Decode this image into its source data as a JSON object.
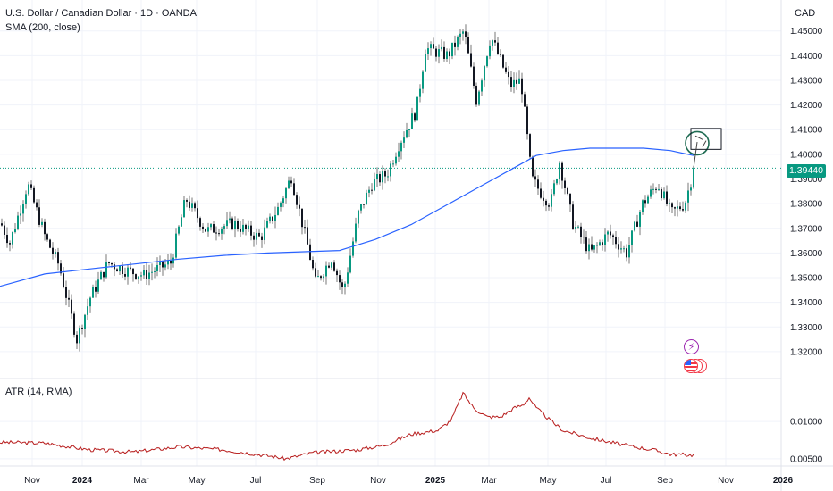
{
  "header": {
    "title": "U.S. Dollar / Canadian Dollar · 1D · OANDA",
    "sma_label": "SMA (200, close)",
    "atr_label": "ATR (14, RMA)",
    "currency": "CAD",
    "last_price": "1.39440"
  },
  "colors": {
    "up": "#089981",
    "down": "#131722",
    "wick": "#555555",
    "sma": "#2962ff",
    "atr": "#b71c1c",
    "grid": "#f0f3fa",
    "annotation_circle": "#1e6b52",
    "annotation_box": "#131722",
    "badge": "#089981"
  },
  "icons": [
    "lightning-icon",
    "us-flag-icon"
  ],
  "chart_data": [
    {
      "type": "candlestick",
      "series_name": "U.S. Dollar / Canadian Dollar",
      "ylim": [
        1.312,
        1.4575
      ],
      "yticks": [
        "1.45000",
        "1.44000",
        "1.43000",
        "1.42000",
        "1.41000",
        "1.40000",
        "1.39000",
        "1.38000",
        "1.37000",
        "1.36000",
        "1.35000",
        "1.34000",
        "1.33000",
        "1.32000"
      ],
      "x_labels": [
        "Nov",
        "2024",
        "Mar",
        "May",
        "Jul",
        "Sep",
        "Nov",
        "2025",
        "Mar",
        "May",
        "Jul",
        "Sep",
        "Nov",
        "2026"
      ],
      "last_value": 1.3944,
      "anchors": [
        [
          0,
          1.372
        ],
        [
          10,
          1.364
        ],
        [
          30,
          1.388
        ],
        [
          50,
          1.366
        ],
        [
          65,
          1.355
        ],
        [
          85,
          1.325
        ],
        [
          100,
          1.342
        ],
        [
          120,
          1.356
        ],
        [
          140,
          1.353
        ],
        [
          160,
          1.351
        ],
        [
          190,
          1.356
        ],
        [
          207,
          1.382
        ],
        [
          230,
          1.369
        ],
        [
          260,
          1.372
        ],
        [
          290,
          1.366
        ],
        [
          310,
          1.378
        ],
        [
          325,
          1.391
        ],
        [
          345,
          1.36
        ],
        [
          352,
          1.348
        ],
        [
          370,
          1.358
        ],
        [
          383,
          1.344
        ],
        [
          400,
          1.376
        ],
        [
          415,
          1.388
        ],
        [
          432,
          1.392
        ],
        [
          445,
          1.404
        ],
        [
          465,
          1.418
        ],
        [
          475,
          1.443
        ],
        [
          500,
          1.44
        ],
        [
          518,
          1.45
        ],
        [
          532,
          1.422
        ],
        [
          548,
          1.448
        ],
        [
          570,
          1.428
        ],
        [
          582,
          1.43
        ],
        [
          594,
          1.39
        ],
        [
          605,
          1.384
        ],
        [
          615,
          1.38
        ],
        [
          625,
          1.397
        ],
        [
          640,
          1.372
        ],
        [
          660,
          1.36
        ],
        [
          680,
          1.368
        ],
        [
          700,
          1.36
        ],
        [
          718,
          1.38
        ],
        [
          735,
          1.388
        ],
        [
          750,
          1.376
        ],
        [
          765,
          1.38
        ],
        [
          776,
          1.3944
        ]
      ],
      "sma_200": [
        [
          0,
          1.3465
        ],
        [
          50,
          1.3515
        ],
        [
          100,
          1.3535
        ],
        [
          150,
          1.3555
        ],
        [
          200,
          1.3575
        ],
        [
          250,
          1.359
        ],
        [
          300,
          1.36
        ],
        [
          340,
          1.3605
        ],
        [
          380,
          1.361
        ],
        [
          420,
          1.3655
        ],
        [
          460,
          1.3715
        ],
        [
          500,
          1.3795
        ],
        [
          540,
          1.3875
        ],
        [
          580,
          1.3955
        ],
        [
          600,
          1.3995
        ],
        [
          630,
          1.4015
        ],
        [
          660,
          1.4025
        ],
        [
          690,
          1.4025
        ],
        [
          720,
          1.4025
        ],
        [
          750,
          1.4015
        ],
        [
          776,
          1.3995
        ]
      ],
      "annotations": [
        "circle near current price",
        "rectangle target zone"
      ]
    },
    {
      "type": "line",
      "series_name": "ATR (14, RMA)",
      "ylim": [
        0.0045,
        0.0148
      ],
      "yticks": [
        "0.01000",
        "0.00500"
      ],
      "values": [
        [
          0,
          0.0072
        ],
        [
          50,
          0.0071
        ],
        [
          100,
          0.0062
        ],
        [
          150,
          0.0059
        ],
        [
          200,
          0.0066
        ],
        [
          250,
          0.0062
        ],
        [
          300,
          0.0054
        ],
        [
          320,
          0.005
        ],
        [
          350,
          0.0058
        ],
        [
          400,
          0.0062
        ],
        [
          430,
          0.0068
        ],
        [
          460,
          0.0083
        ],
        [
          490,
          0.0088
        ],
        [
          505,
          0.0102
        ],
        [
          518,
          0.0138
        ],
        [
          530,
          0.0118
        ],
        [
          545,
          0.0106
        ],
        [
          560,
          0.0106
        ],
        [
          575,
          0.0118
        ],
        [
          585,
          0.0122
        ],
        [
          592,
          0.0132
        ],
        [
          600,
          0.0118
        ],
        [
          615,
          0.0102
        ],
        [
          630,
          0.0088
        ],
        [
          660,
          0.0078
        ],
        [
          700,
          0.0068
        ],
        [
          730,
          0.0062
        ],
        [
          750,
          0.0056
        ],
        [
          776,
          0.0055
        ]
      ]
    }
  ]
}
